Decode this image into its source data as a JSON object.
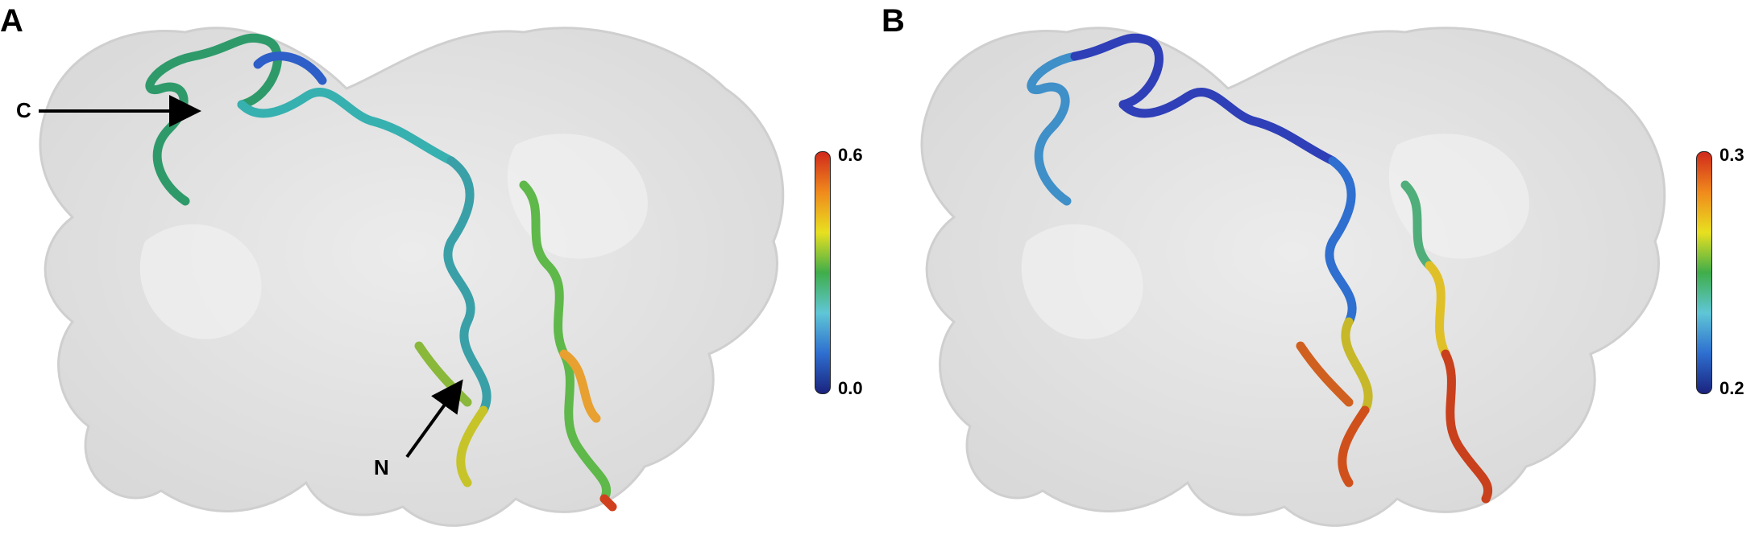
{
  "panels": [
    {
      "letter": "A",
      "colorbar": {
        "max_label": "0.6",
        "min_label": "0.0",
        "gradient": [
          "#1a237e",
          "#2e6fd0",
          "#5fc6d6",
          "#3fae4a",
          "#e8e020",
          "#f08a1c",
          "#d02a1c"
        ]
      },
      "labels": {
        "c": "C",
        "n": "N"
      }
    },
    {
      "letter": "B",
      "colorbar": {
        "max_label": "0.3",
        "min_label": "0.2",
        "gradient": [
          "#1a237e",
          "#2e6fd0",
          "#5fc6d6",
          "#3fae4a",
          "#e8e020",
          "#f08a1c",
          "#d02a1c"
        ]
      }
    }
  ],
  "colors": {
    "surface": "#e6e6e6",
    "surface_edge": "#cfcfcf",
    "arrow": "#000000"
  }
}
